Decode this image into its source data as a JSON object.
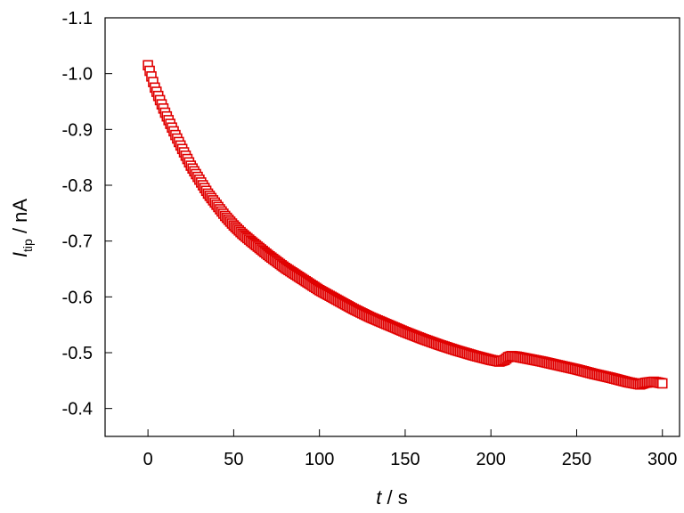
{
  "chart_data": {
    "type": "scatter",
    "title": "",
    "xlabel_italic": "t",
    "xlabel_rest": " / s",
    "ylabel_italic": "I",
    "ylabel_sub": "tip",
    "ylabel_rest": " / nA",
    "xlim": [
      -25,
      310
    ],
    "ylim": [
      -0.35,
      -1.1
    ],
    "y_reversed": true,
    "xticks": [
      {
        "value": 0,
        "label": "0"
      },
      {
        "value": 50,
        "label": "50"
      },
      {
        "value": 100,
        "label": "100"
      },
      {
        "value": 150,
        "label": "150"
      },
      {
        "value": 200,
        "label": "200"
      },
      {
        "value": 250,
        "label": "250"
      },
      {
        "value": 300,
        "label": "300"
      }
    ],
    "yticks": [
      {
        "value": -1.1,
        "label": "-1.1"
      },
      {
        "value": -1.0,
        "label": "-1.0"
      },
      {
        "value": -0.9,
        "label": "-0.9"
      },
      {
        "value": -0.8,
        "label": "-0.8"
      },
      {
        "value": -0.7,
        "label": "-0.7"
      },
      {
        "value": -0.6,
        "label": "-0.6"
      },
      {
        "value": -0.5,
        "label": "-0.5"
      },
      {
        "value": -0.4,
        "label": "-0.4"
      }
    ],
    "grid": false,
    "marker": "square",
    "color": "#e00000",
    "series": [
      {
        "x": [
          0,
          2,
          4,
          6,
          8,
          10,
          13,
          16,
          20,
          25,
          30,
          35,
          40,
          45,
          50,
          55,
          60,
          70,
          80,
          90,
          100,
          110,
          120,
          130,
          140,
          150,
          160,
          170,
          180,
          190,
          200,
          205,
          208,
          210,
          212,
          215,
          220,
          230,
          240,
          250,
          260,
          270,
          280,
          287,
          290,
          295,
          300
        ],
        "y": [
          -1.015,
          -0.995,
          -0.975,
          -0.96,
          -0.945,
          -0.93,
          -0.91,
          -0.89,
          -0.865,
          -0.835,
          -0.81,
          -0.785,
          -0.765,
          -0.745,
          -0.728,
          -0.713,
          -0.7,
          -0.675,
          -0.652,
          -0.632,
          -0.612,
          -0.595,
          -0.578,
          -0.563,
          -0.55,
          -0.537,
          -0.525,
          -0.514,
          -0.504,
          -0.495,
          -0.487,
          -0.484,
          -0.487,
          -0.492,
          -0.494,
          -0.493,
          -0.49,
          -0.484,
          -0.477,
          -0.47,
          -0.462,
          -0.455,
          -0.447,
          -0.443,
          -0.446,
          -0.448,
          -0.445
        ]
      }
    ]
  }
}
